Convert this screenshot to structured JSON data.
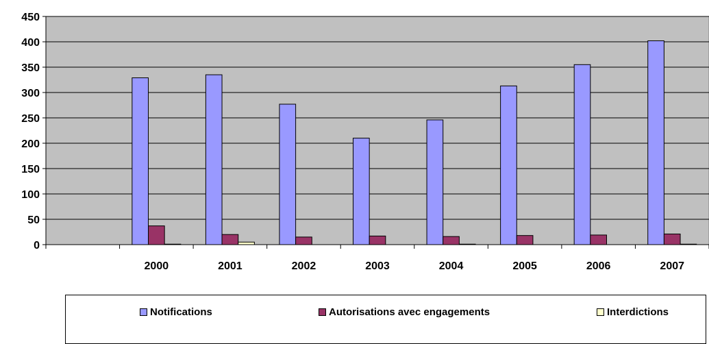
{
  "chart_data": {
    "type": "bar",
    "categories": [
      "",
      "2000",
      "2001",
      "2002",
      "2003",
      "2004",
      "2005",
      "2006",
      "2007"
    ],
    "series": [
      {
        "name": "Notifications",
        "color": "#9999ff",
        "values": [
          null,
          329,
          335,
          277,
          210,
          246,
          313,
          355,
          402
        ]
      },
      {
        "name": "Autorisations avec engagements",
        "color": "#993366",
        "values": [
          null,
          37,
          20,
          15,
          17,
          16,
          18,
          19,
          21
        ]
      },
      {
        "name": "Interdictions",
        "color": "#ffffcc",
        "values": [
          null,
          1,
          5,
          0,
          0,
          1,
          0,
          0,
          1
        ]
      }
    ],
    "ylim": [
      0,
      450
    ],
    "yticks": [
      0,
      50,
      100,
      150,
      200,
      250,
      300,
      350,
      400,
      450
    ],
    "grid": true,
    "plot_background": "#c0c0c0",
    "legend_position": "bottom"
  }
}
